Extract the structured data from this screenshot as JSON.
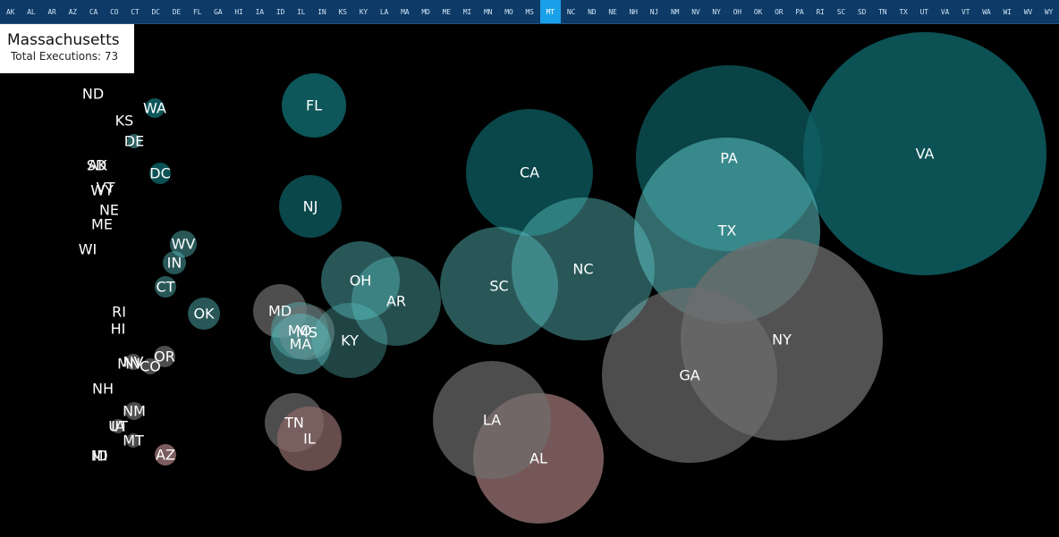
{
  "nav": {
    "states": [
      "AK",
      "AL",
      "AR",
      "AZ",
      "CA",
      "CO",
      "CT",
      "DC",
      "DE",
      "FL",
      "GA",
      "HI",
      "IA",
      "ID",
      "IL",
      "IN",
      "KS",
      "KY",
      "LA",
      "MA",
      "MD",
      "ME",
      "MI",
      "MN",
      "MO",
      "MS",
      "MT",
      "NC",
      "ND",
      "NE",
      "NH",
      "NJ",
      "NM",
      "NV",
      "NY",
      "OH",
      "OK",
      "OR",
      "PA",
      "RI",
      "SC",
      "SD",
      "TN",
      "TX",
      "UT",
      "VA",
      "VT",
      "WA",
      "WI",
      "WV",
      "WY"
    ],
    "selected": "MT"
  },
  "info": {
    "state": "Massachusetts",
    "detail": "Total Executions: 73"
  },
  "colors": {
    "teal_strong": "#0e5f63",
    "teal_light": "#5cc2c4",
    "grey": "#6f6e6e",
    "pink": "#8a6666",
    "nav_bg": "#0d3a66",
    "nav_active": "#1aa0e8"
  },
  "bubbles": [
    {
      "label": "VA",
      "shade": "teal_strong",
      "opacity": 0.85
    },
    {
      "label": "PA",
      "shade": "teal_strong",
      "opacity": 0.7
    },
    {
      "label": "TX",
      "shade": "teal_light",
      "opacity": 0.55
    },
    {
      "label": "NY",
      "shade": "grey",
      "opacity": 0.75
    },
    {
      "label": "GA",
      "shade": "grey",
      "opacity": 0.7
    },
    {
      "label": "CA",
      "shade": "teal_strong",
      "opacity": 0.75
    },
    {
      "label": "NC",
      "shade": "teal_light",
      "opacity": 0.45
    },
    {
      "label": "SC",
      "shade": "teal_light",
      "opacity": 0.45
    },
    {
      "label": "AL",
      "shade": "pink",
      "opacity": 0.85
    },
    {
      "label": "LA",
      "shade": "grey",
      "opacity": 0.7
    },
    {
      "label": "FL",
      "shade": "teal_strong",
      "opacity": 0.9
    },
    {
      "label": "NJ",
      "shade": "teal_strong",
      "opacity": 0.75
    },
    {
      "label": "OH",
      "shade": "teal_light",
      "opacity": 0.45
    },
    {
      "label": "AR",
      "shade": "teal_light",
      "opacity": 0.4
    },
    {
      "label": "MD",
      "shade": "grey",
      "opacity": 0.7
    },
    {
      "label": "MO",
      "shade": "teal_light",
      "opacity": 0.4
    },
    {
      "label": "MS",
      "shade": "grey",
      "opacity": 0.6
    },
    {
      "label": "MA",
      "shade": "teal_light",
      "opacity": 0.45
    },
    {
      "label": "KY",
      "shade": "teal_light",
      "opacity": 0.35
    },
    {
      "label": "TN",
      "shade": "grey",
      "opacity": 0.7
    },
    {
      "label": "IL",
      "shade": "pink",
      "opacity": 0.75
    },
    {
      "label": "OK",
      "shade": "teal_light",
      "opacity": 0.45
    },
    {
      "label": "WV",
      "shade": "teal_light",
      "opacity": 0.45
    },
    {
      "label": "IN",
      "shade": "teal_light",
      "opacity": 0.45
    },
    {
      "label": "CT",
      "shade": "teal_light",
      "opacity": 0.45
    },
    {
      "label": "WA",
      "shade": "teal_strong",
      "opacity": 0.9
    },
    {
      "label": "DC",
      "shade": "teal_strong",
      "opacity": 0.85
    },
    {
      "label": "DE",
      "shade": "teal_light",
      "opacity": 0.5
    },
    {
      "label": "OR",
      "shade": "grey",
      "opacity": 0.7
    },
    {
      "label": "CO",
      "shade": "grey",
      "opacity": 0.7
    },
    {
      "label": "AZ",
      "shade": "pink",
      "opacity": 0.9
    },
    {
      "label": "NM",
      "shade": "grey",
      "opacity": 0.7
    },
    {
      "label": "MT",
      "shade": "grey",
      "opacity": 0.7
    },
    {
      "label": "NV",
      "shade": "grey",
      "opacity": 0.7
    },
    {
      "label": "UT",
      "shade": "grey",
      "opacity": 0.7
    },
    {
      "label": "ND",
      "shade": "grey",
      "opacity": 0
    },
    {
      "label": "KS",
      "shade": "grey",
      "opacity": 0
    },
    {
      "label": "SD",
      "shade": "grey",
      "opacity": 0
    },
    {
      "label": "AK",
      "shade": "grey",
      "opacity": 0
    },
    {
      "label": "VT",
      "shade": "grey",
      "opacity": 0
    },
    {
      "label": "WY",
      "shade": "grey",
      "opacity": 0
    },
    {
      "label": "NE",
      "shade": "grey",
      "opacity": 0
    },
    {
      "label": "ME",
      "shade": "grey",
      "opacity": 0
    },
    {
      "label": "WI",
      "shade": "grey",
      "opacity": 0
    },
    {
      "label": "RI",
      "shade": "grey",
      "opacity": 0
    },
    {
      "label": "HI",
      "shade": "grey",
      "opacity": 0
    },
    {
      "label": "MN",
      "shade": "grey",
      "opacity": 0
    },
    {
      "label": "NH",
      "shade": "grey",
      "opacity": 0
    },
    {
      "label": "IA",
      "shade": "grey",
      "opacity": 0
    },
    {
      "label": "MI",
      "shade": "grey",
      "opacity": 0
    },
    {
      "label": "ID",
      "shade": "grey",
      "opacity": 0
    }
  ]
}
